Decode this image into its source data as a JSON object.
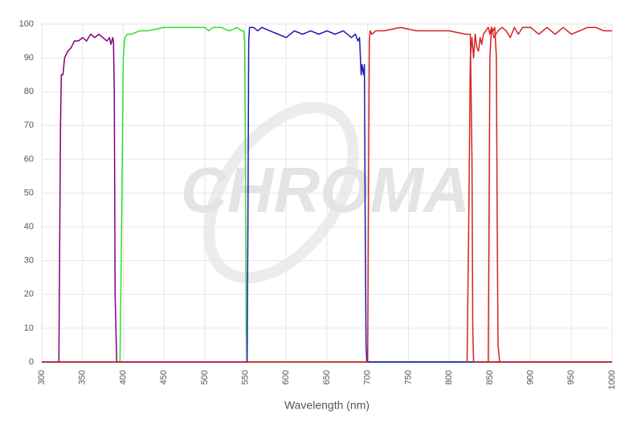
{
  "chart_data": {
    "type": "line",
    "watermark": "CHROMA",
    "x_label": "Wavelength (nm)",
    "xlim": [
      300,
      1000
    ],
    "xticks": [
      300,
      350,
      400,
      450,
      500,
      550,
      600,
      650,
      700,
      750,
      800,
      850,
      900,
      950,
      1000
    ],
    "ylim": [
      0,
      100
    ],
    "yticks": [
      0,
      10,
      20,
      30,
      40,
      50,
      60,
      70,
      80,
      90,
      100
    ],
    "grid": true,
    "series": [
      {
        "color": "#800080",
        "x": [
          300,
          321,
          323,
          324,
          326,
          328,
          332,
          336,
          340,
          345,
          350,
          355,
          360,
          365,
          370,
          375,
          380,
          383,
          385,
          387,
          388,
          389,
          390,
          392,
          1000
        ],
        "values": [
          0,
          0,
          70,
          85,
          85,
          90,
          92,
          93,
          95,
          95,
          96,
          95,
          97,
          96,
          97,
          96,
          95,
          96,
          94,
          96,
          95,
          80,
          20,
          0,
          0
        ]
      },
      {
        "color": "#33dd33",
        "x": [
          300,
          396,
          398,
          400,
          402,
          405,
          410,
          420,
          430,
          450,
          470,
          490,
          500,
          505,
          510,
          520,
          530,
          540,
          545,
          548,
          549,
          550,
          551,
          552,
          1000
        ],
        "values": [
          0,
          0,
          40,
          90,
          96,
          97,
          97,
          98,
          98,
          99,
          99,
          99,
          99,
          98,
          99,
          99,
          98,
          99,
          98,
          98,
          95,
          60,
          10,
          0,
          0
        ]
      },
      {
        "color": "#1a1ab8",
        "x": [
          300,
          552,
          553,
          554,
          555,
          560,
          565,
          570,
          580,
          590,
          600,
          610,
          620,
          630,
          640,
          650,
          660,
          670,
          680,
          685,
          688,
          690,
          692,
          693,
          695,
          696,
          697,
          698,
          699,
          1000
        ],
        "values": [
          0,
          0,
          40,
          95,
          99,
          99,
          98,
          99,
          98,
          97,
          96,
          98,
          97,
          98,
          97,
          98,
          97,
          98,
          96,
          97,
          95,
          96,
          85,
          88,
          85,
          88,
          40,
          5,
          0,
          0
        ]
      },
      {
        "color": "#d62222",
        "x": [
          300,
          700,
          701,
          702,
          703,
          705,
          710,
          720,
          740,
          760,
          780,
          800,
          820,
          826,
          828,
          829,
          830,
          1000
        ],
        "values": [
          0,
          0,
          50,
          95,
          98,
          97,
          98,
          98,
          99,
          98,
          98,
          98,
          97,
          97,
          60,
          10,
          0,
          0
        ]
      },
      {
        "color": "#d62222",
        "x": [
          820,
          822,
          824,
          826,
          828,
          830,
          832,
          834,
          836,
          838,
          840,
          842,
          845,
          848,
          850,
          852,
          854,
          856,
          858,
          859,
          860,
          862
        ],
        "values": [
          0,
          0,
          40,
          90,
          96,
          90,
          97,
          93,
          92,
          96,
          94,
          97,
          98,
          99,
          97,
          99,
          98,
          99,
          90,
          40,
          5,
          0
        ]
      },
      {
        "color": "#d62222",
        "x": [
          845,
          848,
          850,
          852,
          855,
          860,
          865,
          870,
          875,
          880,
          885,
          890,
          900,
          910,
          920,
          930,
          940,
          950,
          960,
          970,
          980,
          990,
          1000
        ],
        "values": [
          0,
          0,
          90,
          99,
          96,
          98,
          99,
          98,
          96,
          99,
          97,
          99,
          99,
          97,
          99,
          97,
          99,
          97,
          98,
          99,
          99,
          98,
          98
        ]
      }
    ]
  }
}
